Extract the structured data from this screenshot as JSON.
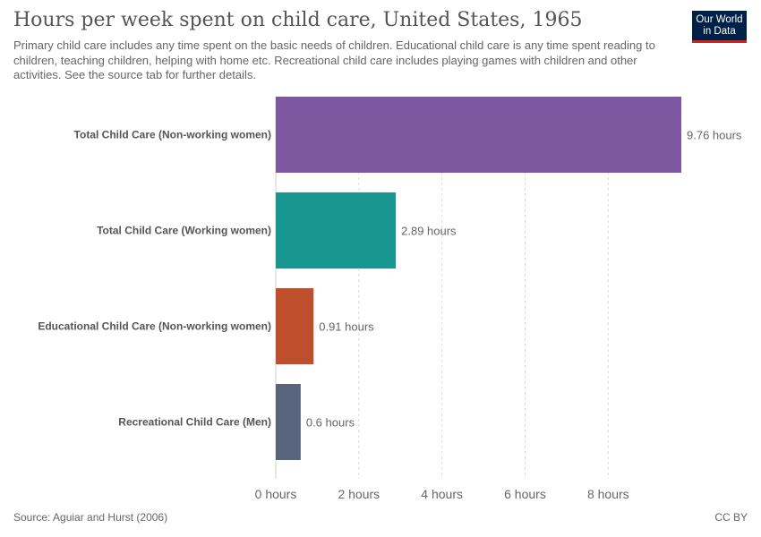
{
  "header": {
    "title": "Hours per week spent on child care, United States, 1965",
    "subtitle": "Primary child care includes any time spent on the basic needs of children. Educational child care is any time spent reading to children, teaching children, helping with home etc. Recreational child care includes playing games with children and other activities. See the source tab for further details."
  },
  "logo": {
    "line1": "Our World",
    "line2": "in Data",
    "colors": {
      "background": "#002147",
      "bar": "#ce261e"
    }
  },
  "footer": {
    "source": "Source: Aguiar and Hurst (2006)",
    "license": "CC BY"
  },
  "chart_data": {
    "type": "bar",
    "orientation": "horizontal",
    "title": "Hours per week spent on child care, United States, 1965",
    "categories": [
      "Total Child Care (Non-working women)",
      "Total Child Care (Working women)",
      "Educational Child Care (Non-working women)",
      "Recreational Child Care (Men)"
    ],
    "values": [
      9.76,
      2.89,
      0.91,
      0.6
    ],
    "value_labels": [
      "9.76 hours",
      "2.89 hours",
      "0.91 hours",
      "0.6 hours"
    ],
    "colors": [
      "#7e57a1",
      "#18968f",
      "#bd4f2d",
      "#58657c"
    ],
    "xlim": [
      0,
      9.76
    ],
    "xticks": [
      0,
      2,
      4,
      6,
      8
    ],
    "xtick_labels": [
      "0 hours",
      "2 hours",
      "4 hours",
      "6 hours",
      "8 hours"
    ],
    "grid": true
  }
}
